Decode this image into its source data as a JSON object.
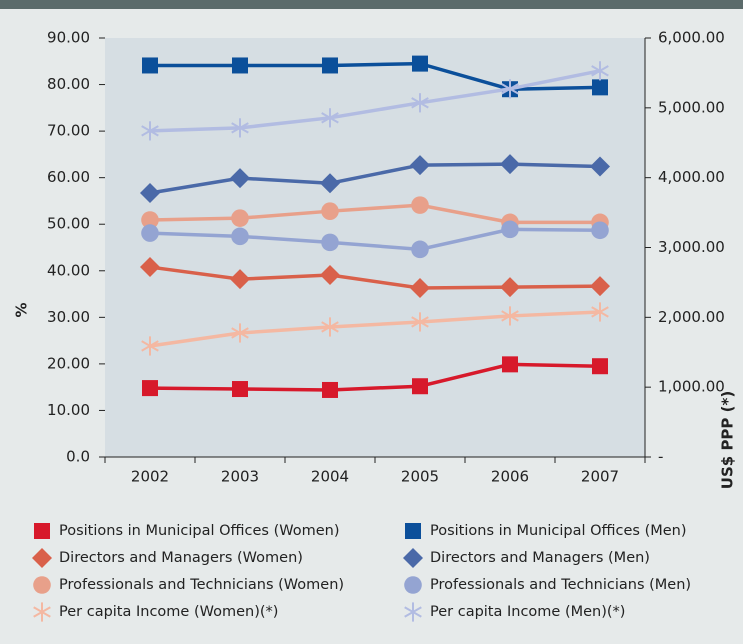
{
  "chart_data": {
    "type": "line",
    "ylabel": "%",
    "y2label": "US$ PPP (*)",
    "categories": [
      "2002",
      "2003",
      "2004",
      "2005",
      "2006",
      "2007"
    ],
    "ylim": [
      0,
      90
    ],
    "yticks": [
      {
        "value": 0,
        "label": "0.0"
      },
      {
        "value": 10,
        "label": "10.00"
      },
      {
        "value": 20,
        "label": "20.00"
      },
      {
        "value": 30,
        "label": "30.00"
      },
      {
        "value": 40,
        "label": "40.00"
      },
      {
        "value": 50,
        "label": "50.00"
      },
      {
        "value": 60,
        "label": "60.00"
      },
      {
        "value": 70,
        "label": "70.00"
      },
      {
        "value": 80,
        "label": "80.00"
      },
      {
        "value": 90,
        "label": "90.00"
      }
    ],
    "y2lim": [
      0,
      6000
    ],
    "y2ticks": [
      {
        "value": 0,
        "label": "-"
      },
      {
        "value": 1000,
        "label": "1,000.00"
      },
      {
        "value": 2000,
        "label": "2,000.00"
      },
      {
        "value": 3000,
        "label": "3,000.00"
      },
      {
        "value": 4000,
        "label": "4,000.00"
      },
      {
        "value": 5000,
        "label": "5,000.00"
      },
      {
        "value": 6000,
        "label": "6,000.00"
      }
    ],
    "series": [
      {
        "name": "Positions in Municipal Offices (Women)",
        "color": "#d7192b",
        "marker": "square",
        "values": [
          14.8,
          14.6,
          14.4,
          15.2,
          19.9,
          19.5
        ]
      },
      {
        "name": "Positions in Municipal Offices (Men)",
        "color": "#0b4f9a",
        "marker": "square",
        "values": [
          84.1,
          84.1,
          84.1,
          84.5,
          79.0,
          79.4
        ]
      },
      {
        "name": "Directors and Managers (Women)",
        "color": "#d9604a",
        "marker": "diamond",
        "values": [
          40.8,
          38.2,
          39.1,
          36.3,
          36.5,
          36.7
        ]
      },
      {
        "name": "Directors and Managers (Men)",
        "color": "#4a69a8",
        "marker": "diamond",
        "values": [
          56.7,
          59.9,
          58.8,
          62.7,
          62.9,
          62.4
        ]
      },
      {
        "name": "Professionals and Technicians (Women)",
        "color": "#e8a08a",
        "marker": "circle",
        "values": [
          50.9,
          51.3,
          52.8,
          54.1,
          50.4,
          50.4
        ]
      },
      {
        "name": "Professionals and Technicians (Men)",
        "color": "#94a4d2",
        "marker": "circle",
        "values": [
          48.1,
          47.4,
          46.1,
          44.6,
          48.9,
          48.7
        ]
      },
      {
        "name": "Per capita Income (Women)(*)",
        "color": "#f4b8a2",
        "marker": "asterisk",
        "axis": "y2",
        "values": [
          1590,
          1776,
          1862,
          1934,
          2020,
          2077
        ]
      },
      {
        "name": "Per capita Income (Men)(*)",
        "color": "#b2bce2",
        "marker": "asterisk",
        "axis": "y2",
        "values": [
          4670,
          4713,
          4857,
          5072,
          5272,
          5530
        ]
      }
    ]
  }
}
